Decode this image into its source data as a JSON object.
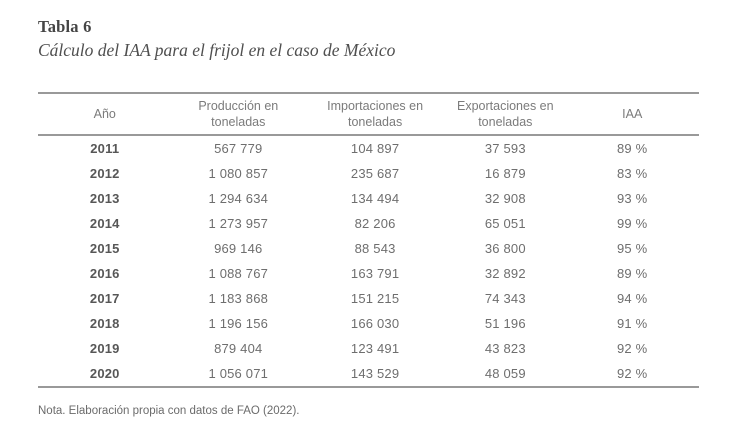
{
  "page": {
    "label": "Tabla 6",
    "title": "Cálculo del IAA para el frijol en el caso de México",
    "note": "Nota. Elaboración propia con datos de FAO (2022)."
  },
  "table": {
    "headers": [
      {
        "line1": "Año",
        "line2": ""
      },
      {
        "line1": "Producción en",
        "line2": "toneladas"
      },
      {
        "line1": "Importaciones en",
        "line2": "toneladas"
      },
      {
        "line1": "Exportaciones en",
        "line2": "toneladas"
      },
      {
        "line1": "IAA",
        "line2": ""
      }
    ],
    "rows": [
      {
        "year": "2011",
        "produccion": "567 779",
        "importaciones": "104 897",
        "exportaciones": "37 593",
        "iaa": "89 %"
      },
      {
        "year": "2012",
        "produccion": "1 080 857",
        "importaciones": "235 687",
        "exportaciones": "16 879",
        "iaa": "83 %"
      },
      {
        "year": "2013",
        "produccion": "1 294 634",
        "importaciones": "134 494",
        "exportaciones": "32 908",
        "iaa": "93 %"
      },
      {
        "year": "2014",
        "produccion": "1 273 957",
        "importaciones": "82 206",
        "exportaciones": "65 051",
        "iaa": "99 %"
      },
      {
        "year": "2015",
        "produccion": "969 146",
        "importaciones": "88 543",
        "exportaciones": "36 800",
        "iaa": "95 %"
      },
      {
        "year": "2016",
        "produccion": "1 088 767",
        "importaciones": "163 791",
        "exportaciones": "32 892",
        "iaa": "89 %"
      },
      {
        "year": "2017",
        "produccion": "1 183 868",
        "importaciones": "151 215",
        "exportaciones": "74 343",
        "iaa": "94 %"
      },
      {
        "year": "2018",
        "produccion": "1 196 156",
        "importaciones": "166 030",
        "exportaciones": "51 196",
        "iaa": "91 %"
      },
      {
        "year": "2019",
        "produccion": "879 404",
        "importaciones": "123 491",
        "exportaciones": "43 823",
        "iaa": "92 %"
      },
      {
        "year": "2020",
        "produccion": "1 056 071",
        "importaciones": "143 529",
        "exportaciones": "48 059",
        "iaa": "92 %"
      }
    ]
  },
  "colors": {
    "rule": "#999999",
    "title_text": "#454545",
    "subtitle_text": "#4f4f4f",
    "header_text": "#7b7b7b",
    "body_text": "#6e6e6e",
    "year_text": "#575757",
    "note_text": "#6b6b6b",
    "page_bg": "#ffffff"
  }
}
